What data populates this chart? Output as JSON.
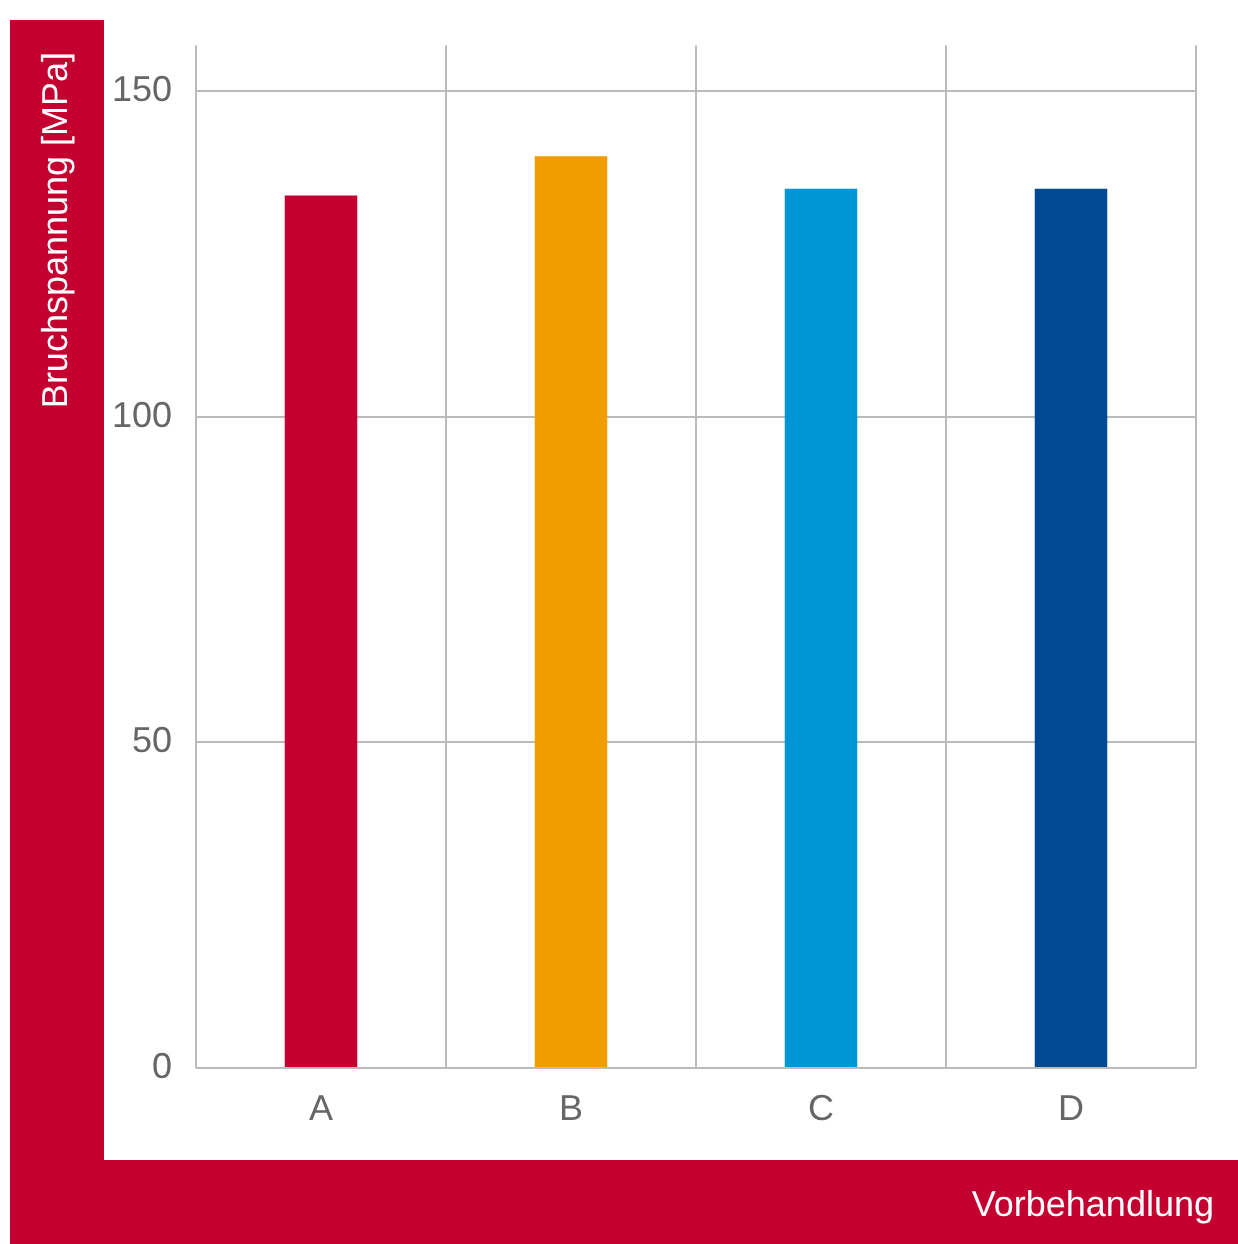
{
  "chart_data": {
    "type": "bar",
    "xlabel": "Vorbehandlung",
    "ylabel": "Bruchspannung [MPa]",
    "categories": [
      "A",
      "B",
      "C",
      "D"
    ],
    "values": [
      134,
      140,
      135,
      135
    ],
    "colors": [
      "#c3002f",
      "#f39c00",
      "#0096d6",
      "#004a93"
    ],
    "ylim": [
      0,
      157
    ],
    "yticks": [
      0,
      50,
      100,
      150
    ],
    "grid": true,
    "legend": false
  }
}
